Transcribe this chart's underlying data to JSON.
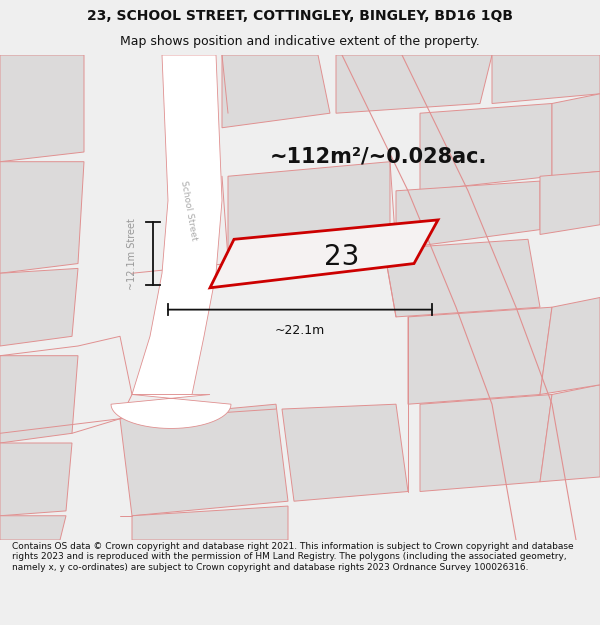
{
  "title_line1": "23, SCHOOL STREET, COTTINGLEY, BINGLEY, BD16 1QB",
  "title_line2": "Map shows position and indicative extent of the property.",
  "footer_text": "Contains OS data © Crown copyright and database right 2021. This information is subject to Crown copyright and database rights 2023 and is reproduced with the permission of HM Land Registry. The polygons (including the associated geometry, namely x, y co-ordinates) are subject to Crown copyright and database rights 2023 Ordnance Survey 100026316.",
  "area_label": "~112m²/~0.028ac.",
  "property_number": "23",
  "width_label": "~22.1m",
  "height_label": "~12.1m Street",
  "bg_color": "#efefef",
  "map_bg": "#f2f0f0",
  "road_fill": "#ffffff",
  "line_pink": "#e09090",
  "property_outline": "#cc0000",
  "dim_color": "#111111",
  "text_color": "#111111",
  "footer_color": "#111111",
  "light_gray": "#dcdada",
  "title_fontsize": 10,
  "subtitle_fontsize": 9,
  "footer_fontsize": 6.5,
  "area_fontsize": 15,
  "number_fontsize": 20,
  "dim_label_fontsize": 9
}
